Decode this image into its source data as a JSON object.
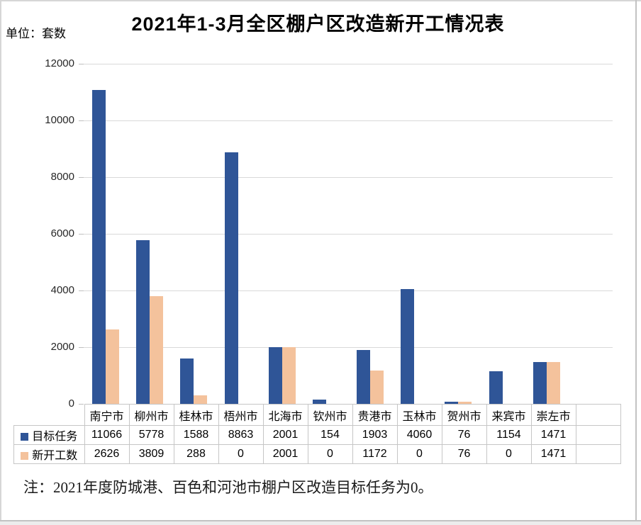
{
  "page": {
    "title": "2021年1-3月全区棚户区改造新开工情况表",
    "unit_label": "单位：套数",
    "note": "注：2021年度防城港、百色和河池市棚户区改造目标任务为0。"
  },
  "chart_data": {
    "type": "bar",
    "title": "2021年1-3月全区棚户区改造新开工情况表",
    "ylabel": "套数",
    "categories": [
      "南宁市",
      "柳州市",
      "桂林市",
      "梧州市",
      "北海市",
      "钦州市",
      "贵港市",
      "玉林市",
      "贺州市",
      "来宾市",
      "崇左市"
    ],
    "series": [
      {
        "name": "目标任务",
        "color": "#2F5597",
        "values": [
          11066,
          5778,
          1588,
          8863,
          2001,
          154,
          1903,
          4060,
          76,
          1154,
          1471
        ]
      },
      {
        "name": "新开工数",
        "color": "#F4C29C",
        "values": [
          2626,
          3809,
          288,
          0,
          2001,
          0,
          1172,
          0,
          76,
          0,
          1471
        ]
      }
    ],
    "ylim": [
      0,
      12000
    ],
    "ytick_interval": 2000,
    "yticks": [
      0,
      2000,
      4000,
      6000,
      8000,
      10000,
      12000
    ],
    "grid": true,
    "legend_position": "table-left",
    "note": "注：2021年度防城港、百色和河池市棚户区改造目标任务为0。",
    "colors": {
      "gridline": "#D9D9D9",
      "table_border": "#C6C6C6"
    }
  }
}
